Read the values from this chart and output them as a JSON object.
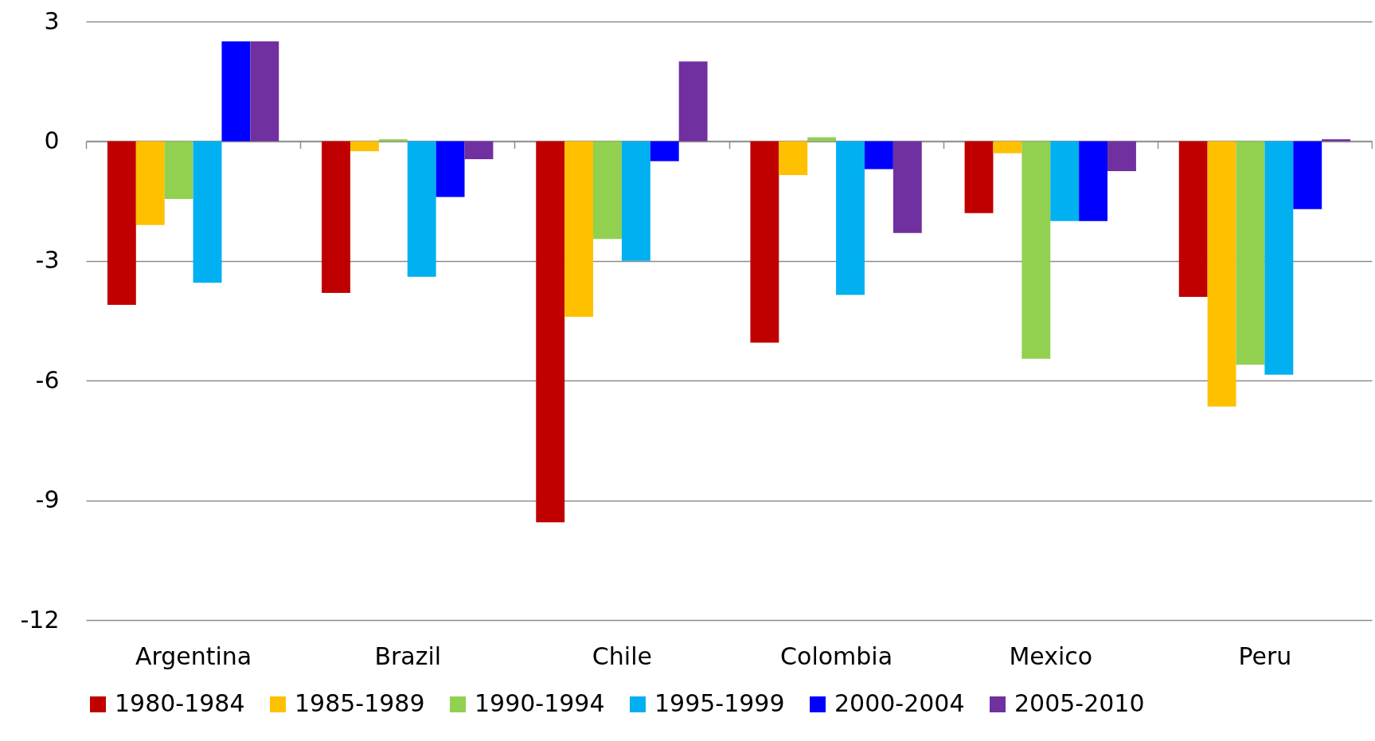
{
  "chart_data": {
    "type": "bar",
    "categories": [
      "Argentina",
      "Brazil",
      "Chile",
      "Colombia",
      "Mexico",
      "Peru"
    ],
    "series": [
      {
        "name": "1980-1984",
        "color": "#c00000",
        "values": [
          -4.1,
          -3.8,
          -9.55,
          -5.05,
          -1.8,
          -3.9
        ]
      },
      {
        "name": "1985-1989",
        "color": "#ffc000",
        "values": [
          -2.1,
          -0.25,
          -4.4,
          -0.85,
          -0.3,
          -6.65
        ]
      },
      {
        "name": "1990-1994",
        "color": "#92d050",
        "values": [
          -1.45,
          0.05,
          -2.45,
          0.1,
          -5.45,
          -5.6
        ]
      },
      {
        "name": "1995-1999",
        "color": "#00b0f0",
        "values": [
          -3.55,
          -3.4,
          -3.0,
          -3.85,
          -2.0,
          -5.85
        ]
      },
      {
        "name": "2000-2004",
        "color": "#0000ff",
        "values": [
          2.5,
          -1.4,
          -0.5,
          -0.7,
          -2.0,
          -1.7
        ]
      },
      {
        "name": "2005-2010",
        "color": "#7030a0",
        "values": [
          2.5,
          -0.45,
          2.0,
          -2.3,
          -0.75,
          0.05
        ]
      }
    ],
    "ylim": [
      -12,
      3
    ],
    "yticks": [
      -12,
      -9,
      -6,
      -3,
      0,
      3
    ],
    "grid": "y",
    "legend": "bottom"
  }
}
